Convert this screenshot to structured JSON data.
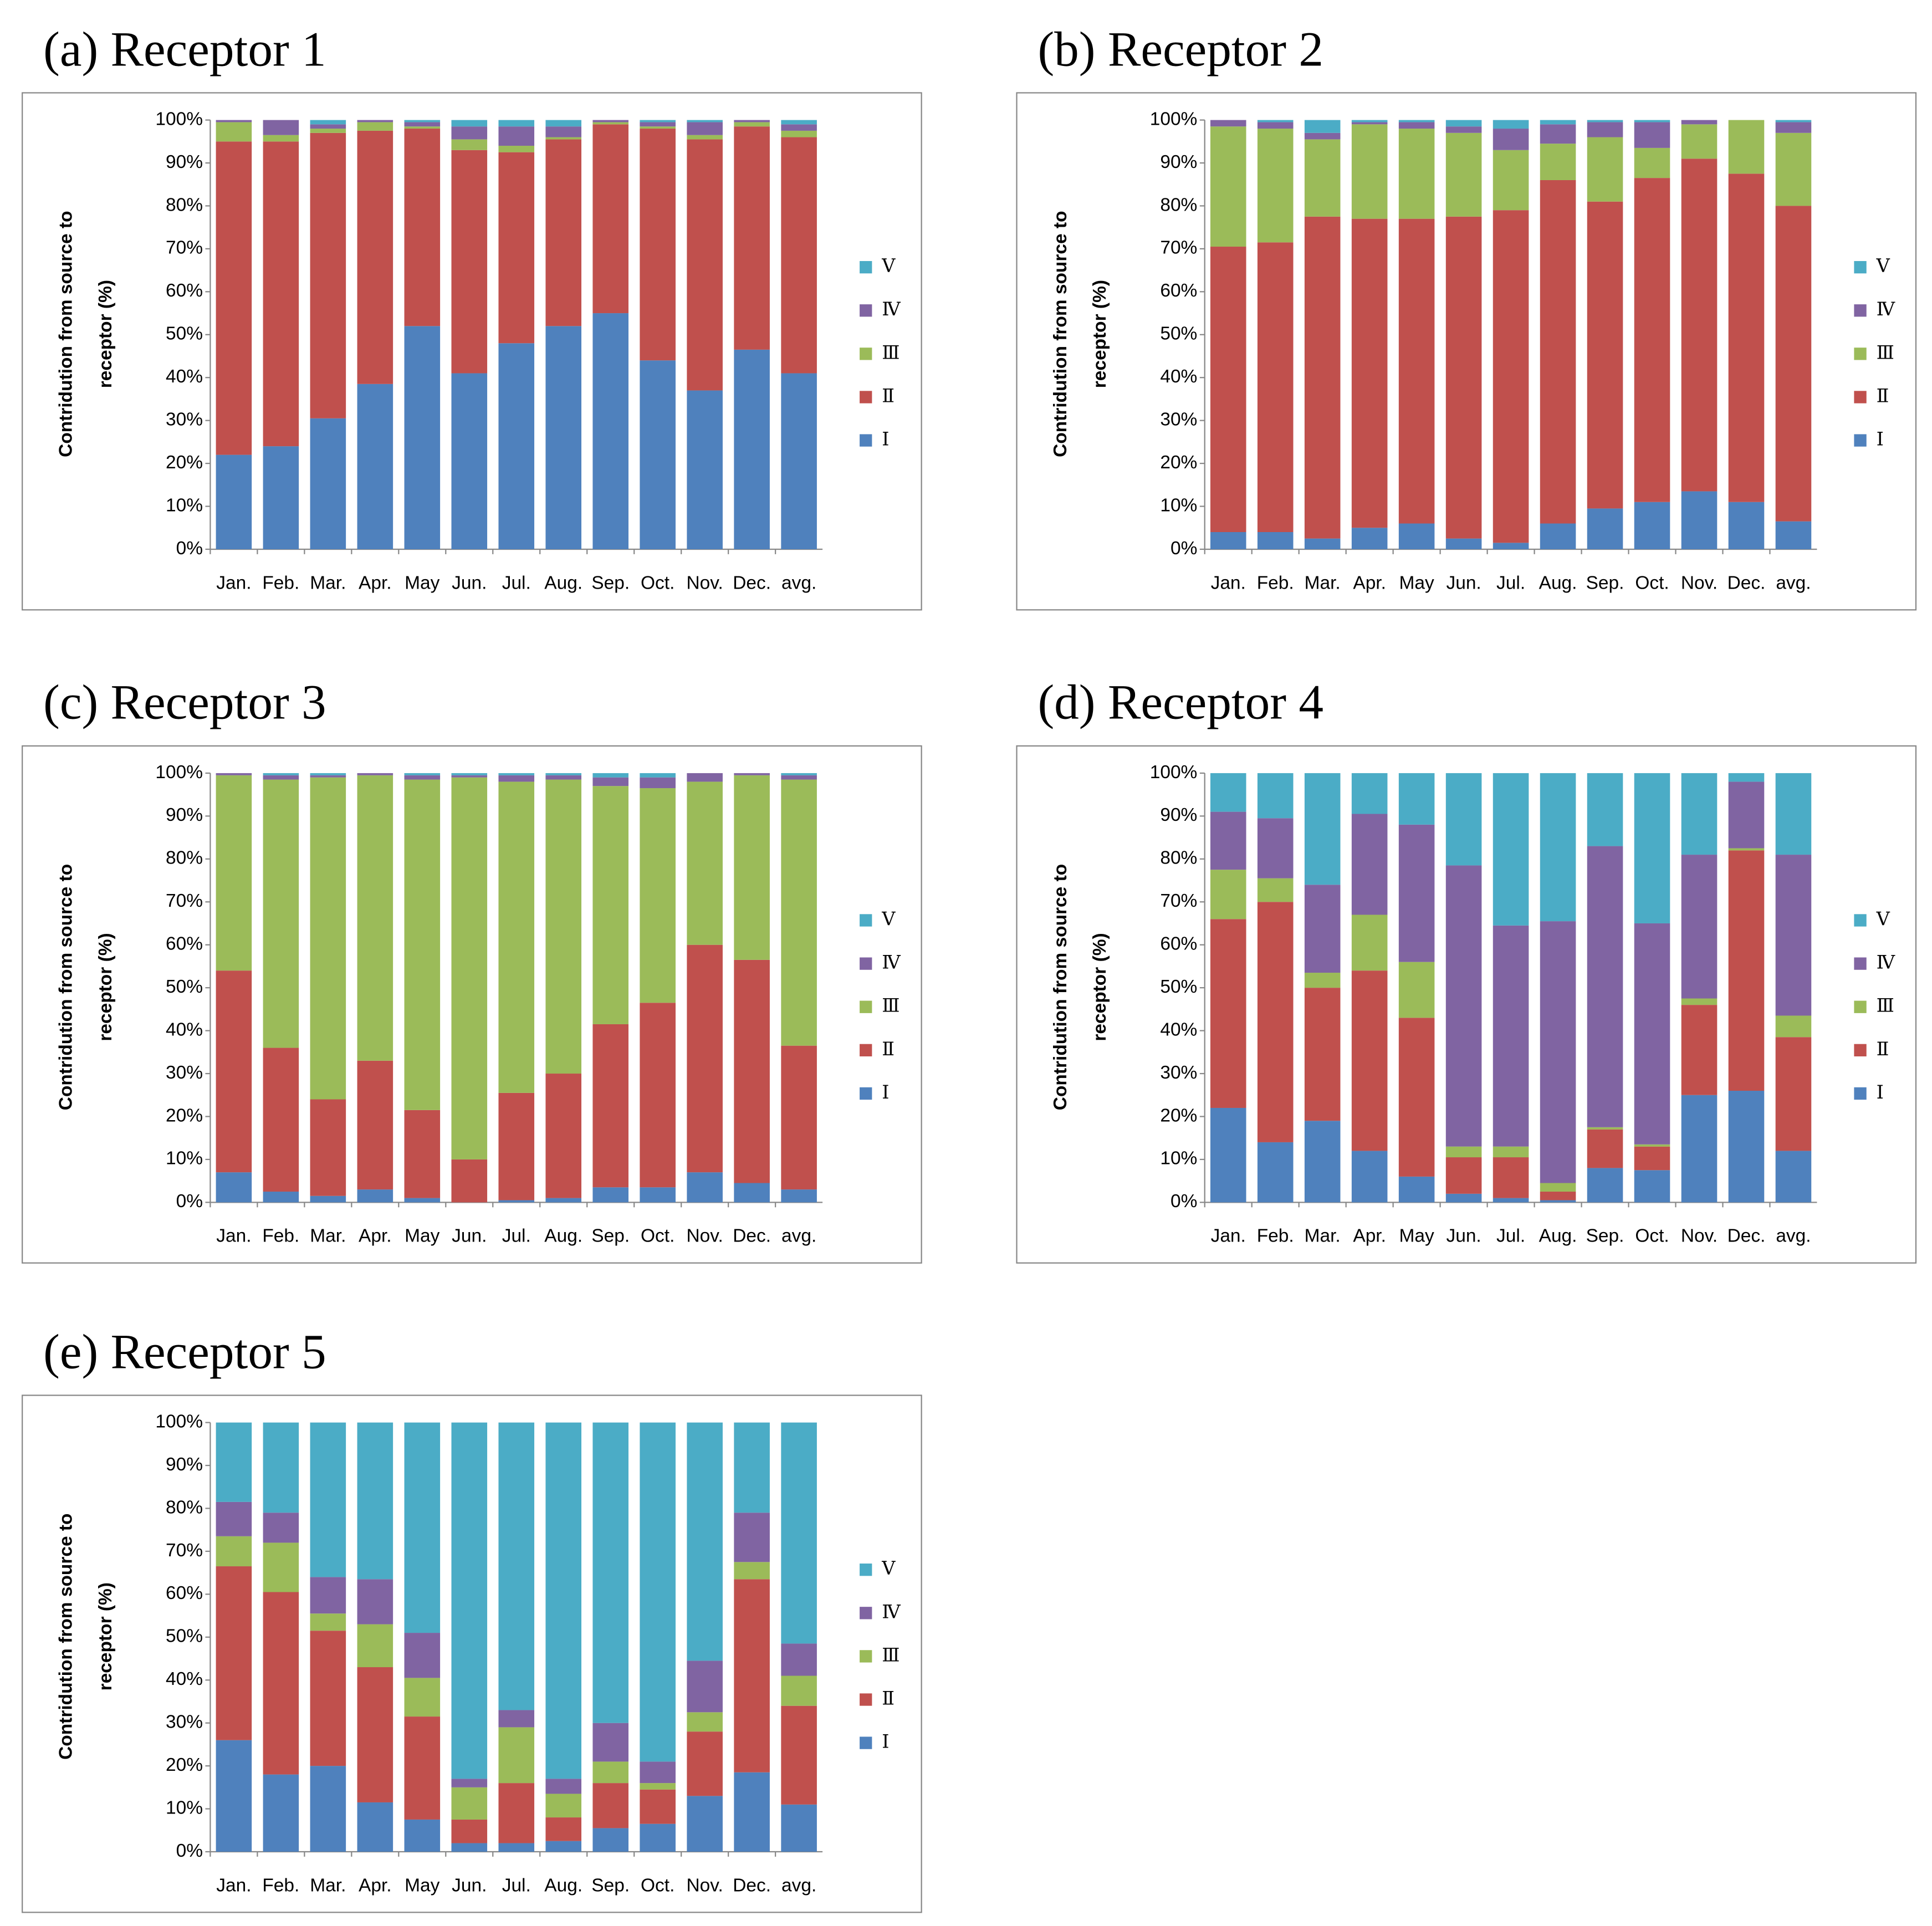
{
  "chart_data": [
    {
      "type": "bar",
      "stacked": true,
      "title": "(a) Receptor 1",
      "y_label": [
        "Contridution from source to",
        "receptor (%)"
      ],
      "categories": [
        "Jan.",
        "Feb.",
        "Mar.",
        "Apr.",
        "May",
        "Jun.",
        "Jul.",
        "Aug.",
        "Sep.",
        "Oct.",
        "Nov.",
        "Dec.",
        "avg."
      ],
      "ylim": [
        0,
        100
      ],
      "yticks": [
        {
          "value": 0,
          "label": "0%"
        },
        {
          "value": 10,
          "label": "10%"
        },
        {
          "value": 20,
          "label": "20%"
        },
        {
          "value": 30,
          "label": "30%"
        },
        {
          "value": 40,
          "label": "40%"
        },
        {
          "value": 50,
          "label": "50%"
        },
        {
          "value": 60,
          "label": "60%"
        },
        {
          "value": 70,
          "label": "70%"
        },
        {
          "value": 80,
          "label": "80%"
        },
        {
          "value": 90,
          "label": "90%"
        },
        {
          "value": 100,
          "label": "100%"
        }
      ],
      "grid": false,
      "legend": "right",
      "series": [
        {
          "name": "Ⅰ",
          "color": "#4f81bd",
          "values": [
            22,
            24,
            30.5,
            38.5,
            52,
            41,
            48,
            52,
            55,
            44,
            37,
            46.5,
            41
          ]
        },
        {
          "name": "Ⅱ",
          "color": "#c0504d",
          "values": [
            73,
            71,
            66.5,
            59,
            46,
            52,
            44.5,
            43.5,
            44,
            54,
            58.5,
            52,
            55
          ]
        },
        {
          "name": "Ⅲ",
          "color": "#9bbb59",
          "values": [
            4.5,
            1.5,
            1,
            2,
            0.5,
            2.5,
            1.5,
            0.5,
            0.5,
            0.5,
            1,
            1,
            1.5
          ]
        },
        {
          "name": "Ⅳ",
          "color": "#8064a2",
          "values": [
            0.5,
            3.5,
            1,
            0.5,
            1,
            3,
            4.5,
            2.5,
            0.5,
            1,
            3,
            0.5,
            1.5
          ]
        },
        {
          "name": "Ⅴ",
          "color": "#4bacc6",
          "values": [
            0,
            0,
            1,
            0,
            0.5,
            1.5,
            1.5,
            1.5,
            0,
            0.5,
            0.5,
            0,
            1
          ]
        }
      ]
    },
    {
      "type": "bar",
      "stacked": true,
      "title": "(b) Receptor 2",
      "y_label": [
        "Contridution from source to",
        "receptor (%)"
      ],
      "categories": [
        "Jan.",
        "Feb.",
        "Mar.",
        "Apr.",
        "May",
        "Jun.",
        "Jul.",
        "Aug.",
        "Sep.",
        "Oct.",
        "Nov.",
        "Dec.",
        "avg."
      ],
      "ylim": [
        0,
        100
      ],
      "yticks": [
        {
          "value": 0,
          "label": "0%"
        },
        {
          "value": 10,
          "label": "10%"
        },
        {
          "value": 20,
          "label": "20%"
        },
        {
          "value": 30,
          "label": "30%"
        },
        {
          "value": 40,
          "label": "40%"
        },
        {
          "value": 50,
          "label": "50%"
        },
        {
          "value": 60,
          "label": "60%"
        },
        {
          "value": 70,
          "label": "70%"
        },
        {
          "value": 80,
          "label": "80%"
        },
        {
          "value": 90,
          "label": "90%"
        },
        {
          "value": 100,
          "label": "100%"
        }
      ],
      "grid": false,
      "legend": "right",
      "series": [
        {
          "name": "Ⅰ",
          "color": "#4f81bd",
          "values": [
            4,
            4,
            2.5,
            5,
            6,
            2.5,
            1.5,
            6,
            9.5,
            11,
            13.5,
            11,
            6.5
          ]
        },
        {
          "name": "Ⅱ",
          "color": "#c0504d",
          "values": [
            66.5,
            67.5,
            75,
            72,
            71,
            75,
            77.5,
            80,
            71.5,
            75.5,
            77.5,
            76.5,
            73.5
          ]
        },
        {
          "name": "Ⅲ",
          "color": "#9bbb59",
          "values": [
            28,
            26.5,
            18,
            22,
            21,
            19.5,
            14,
            8.5,
            15,
            7,
            8,
            12.5,
            17
          ]
        },
        {
          "name": "Ⅳ",
          "color": "#8064a2",
          "values": [
            1.5,
            1.5,
            1.5,
            0.5,
            1.5,
            1.5,
            5,
            4.5,
            3.5,
            6,
            1,
            0,
            2.5
          ]
        },
        {
          "name": "Ⅴ",
          "color": "#4bacc6",
          "values": [
            0,
            0.5,
            3,
            0.5,
            0.5,
            1.5,
            2,
            1,
            0.5,
            0.5,
            0,
            0,
            0.5
          ]
        }
      ]
    },
    {
      "type": "bar",
      "stacked": true,
      "title": "(c) Receptor 3",
      "y_label": [
        "Contridution from source to",
        "receptor (%)"
      ],
      "categories": [
        "Jan.",
        "Feb.",
        "Mar.",
        "Apr.",
        "May",
        "Jun.",
        "Jul.",
        "Aug.",
        "Sep.",
        "Oct.",
        "Nov.",
        "Dec.",
        "avg."
      ],
      "ylim": [
        0,
        100
      ],
      "yticks": [
        {
          "value": 0,
          "label": "0%"
        },
        {
          "value": 10,
          "label": "10%"
        },
        {
          "value": 20,
          "label": "20%"
        },
        {
          "value": 30,
          "label": "30%"
        },
        {
          "value": 40,
          "label": "40%"
        },
        {
          "value": 50,
          "label": "50%"
        },
        {
          "value": 60,
          "label": "60%"
        },
        {
          "value": 70,
          "label": "70%"
        },
        {
          "value": 80,
          "label": "80%"
        },
        {
          "value": 90,
          "label": "90%"
        },
        {
          "value": 100,
          "label": "100%"
        }
      ],
      "grid": false,
      "legend": "right",
      "series": [
        {
          "name": "Ⅰ",
          "color": "#4f81bd",
          "values": [
            7,
            2.5,
            1.5,
            3,
            1,
            0,
            0.5,
            1,
            3.5,
            3.5,
            7,
            4.5,
            3
          ]
        },
        {
          "name": "Ⅱ",
          "color": "#c0504d",
          "values": [
            47,
            33.5,
            22.5,
            30,
            20.5,
            10,
            25,
            29,
            38,
            43,
            53,
            52,
            33.5
          ]
        },
        {
          "name": "Ⅲ",
          "color": "#9bbb59",
          "values": [
            45.5,
            62.5,
            75,
            66.5,
            77,
            89,
            72.5,
            68.5,
            55.5,
            50,
            38,
            43,
            62
          ]
        },
        {
          "name": "Ⅳ",
          "color": "#8064a2",
          "values": [
            0.5,
            1,
            0.5,
            0.5,
            1,
            0.5,
            1.5,
            1,
            2,
            2.5,
            2,
            0.5,
            1
          ]
        },
        {
          "name": "Ⅴ",
          "color": "#4bacc6",
          "values": [
            0,
            0.5,
            0.5,
            0,
            0.5,
            0.5,
            0.5,
            0.5,
            1,
            1,
            0,
            0,
            0.5
          ]
        }
      ]
    },
    {
      "type": "bar",
      "stacked": true,
      "title": "(d) Receptor 4",
      "y_label": [
        "Contridution from source to",
        "receptor (%)"
      ],
      "categories": [
        "Jan.",
        "Feb.",
        "Mar.",
        "Apr.",
        "May",
        "Jun.",
        "Jul.",
        "Aug.",
        "Sep.",
        "Oct.",
        "Nov.",
        "Dec.",
        "avg."
      ],
      "ylim": [
        0,
        100
      ],
      "yticks": [
        {
          "value": 0,
          "label": "0%"
        },
        {
          "value": 10,
          "label": "10%"
        },
        {
          "value": 20,
          "label": "20%"
        },
        {
          "value": 30,
          "label": "30%"
        },
        {
          "value": 40,
          "label": "40%"
        },
        {
          "value": 50,
          "label": "50%"
        },
        {
          "value": 60,
          "label": "60%"
        },
        {
          "value": 70,
          "label": "70%"
        },
        {
          "value": 80,
          "label": "80%"
        },
        {
          "value": 90,
          "label": "90%"
        },
        {
          "value": 100,
          "label": "100%"
        }
      ],
      "grid": false,
      "legend": "right",
      "series": [
        {
          "name": "Ⅰ",
          "color": "#4f81bd",
          "values": [
            22,
            14,
            19,
            12,
            6,
            2,
            1,
            0.5,
            8,
            7.5,
            25,
            26,
            12
          ]
        },
        {
          "name": "Ⅱ",
          "color": "#c0504d",
          "values": [
            44,
            56,
            31,
            42,
            37,
            8.5,
            9.5,
            2,
            9,
            5.5,
            21,
            56,
            26.5
          ]
        },
        {
          "name": "Ⅲ",
          "color": "#9bbb59",
          "values": [
            11.5,
            5.5,
            3.5,
            13,
            13,
            2.5,
            2.5,
            2,
            0.5,
            0.5,
            1.5,
            0.5,
            5
          ]
        },
        {
          "name": "Ⅳ",
          "color": "#8064a2",
          "values": [
            13.5,
            14,
            20.5,
            23.5,
            32,
            65.5,
            51.5,
            61,
            65.5,
            51.5,
            33.5,
            15.5,
            37.5
          ]
        },
        {
          "name": "Ⅴ",
          "color": "#4bacc6",
          "values": [
            9,
            10.5,
            26,
            9.5,
            12,
            21.5,
            35.5,
            34.5,
            17,
            35,
            19,
            2,
            19
          ]
        }
      ]
    },
    {
      "type": "bar",
      "stacked": true,
      "title": "(e) Receptor 5",
      "y_label": [
        "Contridution from source to",
        "receptor (%)"
      ],
      "categories": [
        "Jan.",
        "Feb.",
        "Mar.",
        "Apr.",
        "May",
        "Jun.",
        "Jul.",
        "Aug.",
        "Sep.",
        "Oct.",
        "Nov.",
        "Dec.",
        "avg."
      ],
      "ylim": [
        0,
        100
      ],
      "yticks": [
        {
          "value": 0,
          "label": "0%"
        },
        {
          "value": 10,
          "label": "10%"
        },
        {
          "value": 20,
          "label": "20%"
        },
        {
          "value": 30,
          "label": "30%"
        },
        {
          "value": 40,
          "label": "40%"
        },
        {
          "value": 50,
          "label": "50%"
        },
        {
          "value": 60,
          "label": "60%"
        },
        {
          "value": 70,
          "label": "70%"
        },
        {
          "value": 80,
          "label": "80%"
        },
        {
          "value": 90,
          "label": "90%"
        },
        {
          "value": 100,
          "label": "100%"
        }
      ],
      "grid": false,
      "legend": "right",
      "series": [
        {
          "name": "Ⅰ",
          "color": "#4f81bd",
          "values": [
            26,
            18,
            20,
            11.5,
            7.5,
            2,
            2,
            2.5,
            5.5,
            6.5,
            13,
            18.5,
            11
          ]
        },
        {
          "name": "Ⅱ",
          "color": "#c0504d",
          "values": [
            40.5,
            42.5,
            31.5,
            31.5,
            24,
            5.5,
            14,
            5.5,
            10.5,
            8,
            15,
            45,
            23
          ]
        },
        {
          "name": "Ⅲ",
          "color": "#9bbb59",
          "values": [
            7,
            11.5,
            4,
            10,
            9,
            7.5,
            13,
            5.5,
            5,
            1.5,
            4.5,
            4,
            7
          ]
        },
        {
          "name": "Ⅳ",
          "color": "#8064a2",
          "values": [
            8,
            7,
            8.5,
            10.5,
            10.5,
            2,
            4,
            3.5,
            9,
            5,
            12,
            11.5,
            7.5
          ]
        },
        {
          "name": "Ⅴ",
          "color": "#4bacc6",
          "values": [
            18.5,
            21,
            36,
            36.5,
            49,
            83,
            67,
            83,
            70,
            79,
            55.5,
            21,
            51.5
          ]
        }
      ]
    }
  ]
}
